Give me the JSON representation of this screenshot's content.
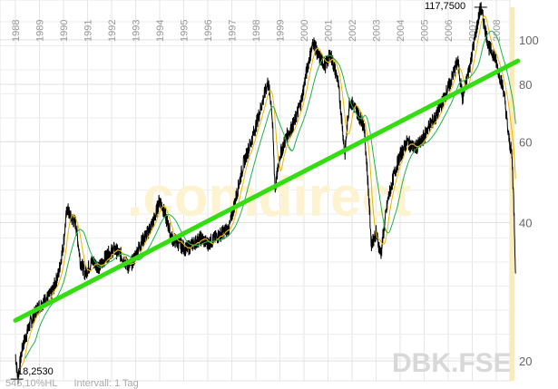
{
  "chart_data": {
    "type": "line",
    "title": "",
    "symbol": "DBK.FSE",
    "watermark": ".comdirect",
    "footer_left": "545,10%HL",
    "footer_interval": "Intervall: 1 Tag",
    "x_ticks": [
      "1988",
      "1989",
      "1990",
      "1991",
      "1992",
      "1993",
      "1994",
      "1995",
      "1996",
      "1997",
      "1998",
      "1999",
      "2000",
      "2001",
      "2002",
      "2003",
      "2004",
      "2005",
      "2006",
      "2007",
      "2008"
    ],
    "y_scale": "log",
    "y_ticks": [
      20,
      40,
      60,
      80,
      100
    ],
    "ylim": [
      17.5,
      122
    ],
    "grid": true,
    "high_label": "117,7500",
    "low_label": "18,2530",
    "high": {
      "x": 2007.35,
      "y": 117.75
    },
    "low": {
      "x": 1988.1,
      "y": 18.253
    },
    "series": [
      {
        "role": "price",
        "color": "#000000",
        "points": [
          [
            1988.0,
            20.7
          ],
          [
            1988.1,
            18.3
          ],
          [
            1988.3,
            21.5
          ],
          [
            1988.6,
            24
          ],
          [
            1988.9,
            26
          ],
          [
            1989.2,
            27
          ],
          [
            1989.5,
            28
          ],
          [
            1989.8,
            31
          ],
          [
            1990.0,
            36
          ],
          [
            1990.15,
            43
          ],
          [
            1990.3,
            41
          ],
          [
            1990.5,
            40
          ],
          [
            1990.7,
            33
          ],
          [
            1990.9,
            31
          ],
          [
            1991.2,
            33
          ],
          [
            1991.5,
            32
          ],
          [
            1991.8,
            34
          ],
          [
            1992.1,
            35
          ],
          [
            1992.4,
            34
          ],
          [
            1992.7,
            32
          ],
          [
            1992.9,
            33
          ],
          [
            1993.2,
            36
          ],
          [
            1993.5,
            38
          ],
          [
            1993.8,
            41
          ],
          [
            1994.0,
            45
          ],
          [
            1994.2,
            42
          ],
          [
            1994.5,
            37
          ],
          [
            1994.8,
            36
          ],
          [
            1995.1,
            35
          ],
          [
            1995.4,
            36
          ],
          [
            1995.7,
            37
          ],
          [
            1996.0,
            36
          ],
          [
            1996.3,
            37
          ],
          [
            1996.6,
            38
          ],
          [
            1996.9,
            39
          ],
          [
            1997.2,
            46
          ],
          [
            1997.5,
            54
          ],
          [
            1997.8,
            60
          ],
          [
            1998.0,
            65
          ],
          [
            1998.3,
            74
          ],
          [
            1998.5,
            81
          ],
          [
            1998.65,
            72
          ],
          [
            1998.8,
            47
          ],
          [
            1999.0,
            56
          ],
          [
            1999.3,
            62
          ],
          [
            1999.6,
            66
          ],
          [
            1999.9,
            74
          ],
          [
            2000.2,
            90
          ],
          [
            2000.4,
            99
          ],
          [
            2000.6,
            92
          ],
          [
            2000.9,
            88
          ],
          [
            2001.1,
            93
          ],
          [
            2001.4,
            82
          ],
          [
            2001.7,
            56
          ],
          [
            2001.9,
            74
          ],
          [
            2002.2,
            70
          ],
          [
            2002.5,
            65
          ],
          [
            2002.7,
            45
          ],
          [
            2002.8,
            36
          ],
          [
            2003.0,
            38
          ],
          [
            2003.2,
            34
          ],
          [
            2003.5,
            45
          ],
          [
            2003.8,
            52
          ],
          [
            2004.0,
            56
          ],
          [
            2004.3,
            60
          ],
          [
            2004.6,
            58
          ],
          [
            2004.9,
            60
          ],
          [
            2005.2,
            65
          ],
          [
            2005.5,
            68
          ],
          [
            2005.8,
            74
          ],
          [
            2006.1,
            81
          ],
          [
            2006.4,
            90
          ],
          [
            2006.6,
            74
          ],
          [
            2006.9,
            88
          ],
          [
            2007.1,
            100
          ],
          [
            2007.35,
            117.75
          ],
          [
            2007.5,
            108
          ],
          [
            2007.7,
            96
          ],
          [
            2007.9,
            93
          ],
          [
            2008.1,
            85
          ],
          [
            2008.3,
            78
          ],
          [
            2008.5,
            62
          ],
          [
            2008.65,
            56
          ],
          [
            2008.75,
            40
          ],
          [
            2008.8,
            31
          ]
        ]
      },
      {
        "role": "moving-average-short",
        "color": "#e8b800",
        "window_years": 0.3
      },
      {
        "role": "moving-average-long",
        "color": "#22b14c",
        "window_years": 0.8
      },
      {
        "role": "trendline",
        "color": "#33dd11",
        "points": [
          [
            1988.0,
            24.5
          ],
          [
            2008.9,
            90
          ]
        ]
      }
    ]
  }
}
